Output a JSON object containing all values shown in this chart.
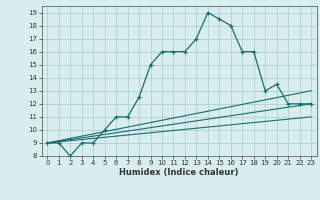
{
  "title": "",
  "xlabel": "Humidex (Indice chaleur)",
  "bg_color": "#d8eeee",
  "grid_color": "#b0d0d0",
  "line_color": "#1a6b6b",
  "xlim": [
    -0.5,
    23.5
  ],
  "ylim": [
    8,
    19.5
  ],
  "xticks": [
    0,
    1,
    2,
    3,
    4,
    5,
    6,
    7,
    8,
    9,
    10,
    11,
    12,
    13,
    14,
    15,
    16,
    17,
    18,
    19,
    20,
    21,
    22,
    23
  ],
  "yticks": [
    8,
    9,
    10,
    11,
    12,
    13,
    14,
    15,
    16,
    17,
    18,
    19
  ],
  "line_main": {
    "x": [
      0,
      1,
      2,
      3,
      4,
      5,
      6,
      7,
      8,
      9,
      10,
      11,
      12,
      13,
      14,
      15,
      16,
      17,
      18,
      19,
      20,
      21,
      22,
      23
    ],
    "y": [
      9,
      9,
      8,
      9,
      9,
      10,
      11,
      11,
      12.5,
      15,
      16,
      16,
      16,
      17,
      19,
      18.5,
      18,
      16,
      16,
      13,
      13.5,
      12,
      12,
      12
    ]
  },
  "line_flat": [
    {
      "x": [
        0,
        23
      ],
      "y": [
        9,
        13
      ]
    },
    {
      "x": [
        0,
        23
      ],
      "y": [
        9,
        12
      ]
    },
    {
      "x": [
        0,
        23
      ],
      "y": [
        9,
        11
      ]
    }
  ]
}
